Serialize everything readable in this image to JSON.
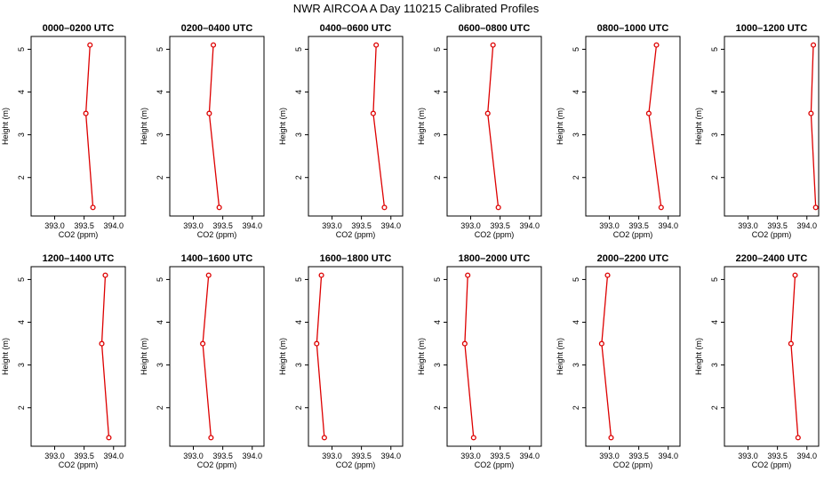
{
  "figure_title": "NWR AIRCOA A  Day 110215  Calibrated Profiles",
  "colors": {
    "series": "#dd0000",
    "axes": "#000000"
  },
  "chart_data": [
    {
      "type": "line",
      "title": "0000–0200 UTC",
      "xlabel": "CO2 (ppm)",
      "ylabel": "Height (m)",
      "xlim": [
        392.6,
        394.2
      ],
      "xticks": [
        "393.0",
        "393.5",
        "394.0"
      ],
      "ylim": [
        1.1,
        5.3
      ],
      "yticks": [
        "2",
        "3",
        "4",
        "5"
      ],
      "x": [
        393.65,
        393.53,
        393.6
      ],
      "y": [
        1.3,
        3.5,
        5.1
      ]
    },
    {
      "type": "line",
      "title": "0200–0400 UTC",
      "xlabel": "CO2 (ppm)",
      "ylabel": "Height (m)",
      "xlim": [
        392.6,
        394.2
      ],
      "xticks": [
        "393.0",
        "393.5",
        "394.0"
      ],
      "ylim": [
        1.1,
        5.3
      ],
      "yticks": [
        "2",
        "3",
        "4",
        "5"
      ],
      "x": [
        393.44,
        393.27,
        393.34
      ],
      "y": [
        1.3,
        3.5,
        5.1
      ]
    },
    {
      "type": "line",
      "title": "0400–0600 UTC",
      "xlabel": "CO2 (ppm)",
      "ylabel": "Height (m)",
      "xlim": [
        392.6,
        394.2
      ],
      "xticks": [
        "393.0",
        "393.5",
        "394.0"
      ],
      "ylim": [
        1.1,
        5.3
      ],
      "yticks": [
        "2",
        "3",
        "4",
        "5"
      ],
      "x": [
        393.89,
        393.7,
        393.75
      ],
      "y": [
        1.3,
        3.5,
        5.1
      ]
    },
    {
      "type": "line",
      "title": "0600–0800 UTC",
      "xlabel": "CO2 (ppm)",
      "ylabel": "Height (m)",
      "xlim": [
        392.6,
        394.2
      ],
      "xticks": [
        "393.0",
        "393.5",
        "394.0"
      ],
      "ylim": [
        1.1,
        5.3
      ],
      "yticks": [
        "2",
        "3",
        "4",
        "5"
      ],
      "x": [
        393.47,
        393.29,
        393.38
      ],
      "y": [
        1.3,
        3.5,
        5.1
      ]
    },
    {
      "type": "line",
      "title": "0800–1000 UTC",
      "xlabel": "CO2 (ppm)",
      "ylabel": "Height (m)",
      "xlim": [
        392.6,
        394.2
      ],
      "xticks": [
        "393.0",
        "393.5",
        "394.0"
      ],
      "ylim": [
        1.1,
        5.3
      ],
      "yticks": [
        "2",
        "3",
        "4",
        "5"
      ],
      "x": [
        393.88,
        393.67,
        393.8
      ],
      "y": [
        1.3,
        3.5,
        5.1
      ]
    },
    {
      "type": "line",
      "title": "1000–1200 UTC",
      "xlabel": "CO2 (ppm)",
      "ylabel": "Height (m)",
      "xlim": [
        392.6,
        394.2
      ],
      "xticks": [
        "393.0",
        "393.5",
        "394.0"
      ],
      "ylim": [
        1.1,
        5.3
      ],
      "yticks": [
        "2",
        "3",
        "4",
        "5"
      ],
      "x": [
        394.15,
        394.07,
        394.11
      ],
      "y": [
        1.3,
        3.5,
        5.1
      ]
    },
    {
      "type": "line",
      "title": "1200–1400 UTC",
      "xlabel": "CO2 (ppm)",
      "ylabel": "Height (m)",
      "xlim": [
        392.6,
        394.2
      ],
      "xticks": [
        "393.0",
        "393.5",
        "394.0"
      ],
      "ylim": [
        1.1,
        5.3
      ],
      "yticks": [
        "2",
        "3",
        "4",
        "5"
      ],
      "x": [
        393.92,
        393.8,
        393.86
      ],
      "y": [
        1.3,
        3.5,
        5.1
      ]
    },
    {
      "type": "line",
      "title": "1400–1600 UTC",
      "xlabel": "CO2 (ppm)",
      "ylabel": "Height (m)",
      "xlim": [
        392.6,
        394.2
      ],
      "xticks": [
        "393.0",
        "393.5",
        "394.0"
      ],
      "ylim": [
        1.1,
        5.3
      ],
      "yticks": [
        "2",
        "3",
        "4",
        "5"
      ],
      "x": [
        393.3,
        393.16,
        393.26
      ],
      "y": [
        1.3,
        3.5,
        5.1
      ]
    },
    {
      "type": "line",
      "title": "1600–1800 UTC",
      "xlabel": "CO2 (ppm)",
      "ylabel": "Height (m)",
      "xlim": [
        392.6,
        394.2
      ],
      "xticks": [
        "393.0",
        "393.5",
        "394.0"
      ],
      "ylim": [
        1.1,
        5.3
      ],
      "yticks": [
        "2",
        "3",
        "4",
        "5"
      ],
      "x": [
        392.87,
        392.74,
        392.82
      ],
      "y": [
        1.3,
        3.5,
        5.1
      ]
    },
    {
      "type": "line",
      "title": "1800–2000 UTC",
      "xlabel": "CO2 (ppm)",
      "ylabel": "Height (m)",
      "xlim": [
        392.6,
        394.2
      ],
      "xticks": [
        "393.0",
        "393.5",
        "394.0"
      ],
      "ylim": [
        1.1,
        5.3
      ],
      "yticks": [
        "2",
        "3",
        "4",
        "5"
      ],
      "x": [
        393.05,
        392.9,
        392.95
      ],
      "y": [
        1.3,
        3.5,
        5.1
      ]
    },
    {
      "type": "line",
      "title": "2000–2200 UTC",
      "xlabel": "CO2 (ppm)",
      "ylabel": "Height (m)",
      "xlim": [
        392.6,
        394.2
      ],
      "xticks": [
        "393.0",
        "393.5",
        "394.0"
      ],
      "ylim": [
        1.1,
        5.3
      ],
      "yticks": [
        "2",
        "3",
        "4",
        "5"
      ],
      "x": [
        393.03,
        392.87,
        392.97
      ],
      "y": [
        1.3,
        3.5,
        5.1
      ]
    },
    {
      "type": "line",
      "title": "2200–2400 UTC",
      "xlabel": "CO2 (ppm)",
      "ylabel": "Height (m)",
      "xlim": [
        392.6,
        394.2
      ],
      "xticks": [
        "393.0",
        "393.5",
        "394.0"
      ],
      "ylim": [
        1.1,
        5.3
      ],
      "yticks": [
        "2",
        "3",
        "4",
        "5"
      ],
      "x": [
        393.85,
        393.73,
        393.8
      ],
      "y": [
        1.3,
        3.5,
        5.1
      ]
    }
  ]
}
